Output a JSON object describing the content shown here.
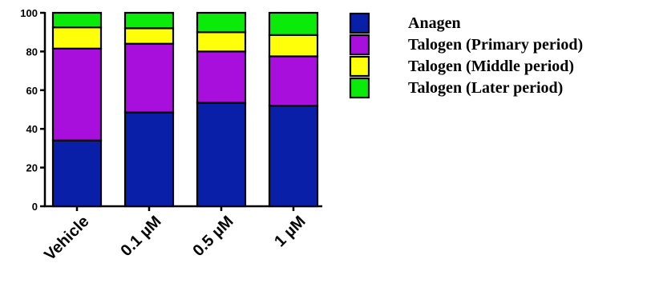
{
  "chart_data": {
    "type": "bar",
    "stacked": true,
    "title": "",
    "xlabel": "",
    "ylabel": "",
    "ylim": [
      0,
      100
    ],
    "yticks": [
      0,
      20,
      40,
      60,
      80,
      100
    ],
    "grid": false,
    "legend_position": "right",
    "categories": [
      "Vehicle",
      "0.1 µM",
      "0.5 µM",
      "1 µM"
    ],
    "series": [
      {
        "name": "Anagen",
        "color": "#0a1fa8",
        "values": [
          34,
          48.5,
          53.5,
          52
        ]
      },
      {
        "name": "Talogen (Primary period)",
        "color": "#a80fdc",
        "values": [
          47.5,
          35.5,
          26.5,
          25.5
        ]
      },
      {
        "name": "Talogen (Middle period)",
        "color": "#ffff0a",
        "values": [
          11,
          8,
          10,
          11
        ]
      },
      {
        "name": "Talogen (Later period)",
        "color": "#0aeb0a",
        "values": [
          7.5,
          8,
          10,
          11.5
        ]
      }
    ]
  }
}
